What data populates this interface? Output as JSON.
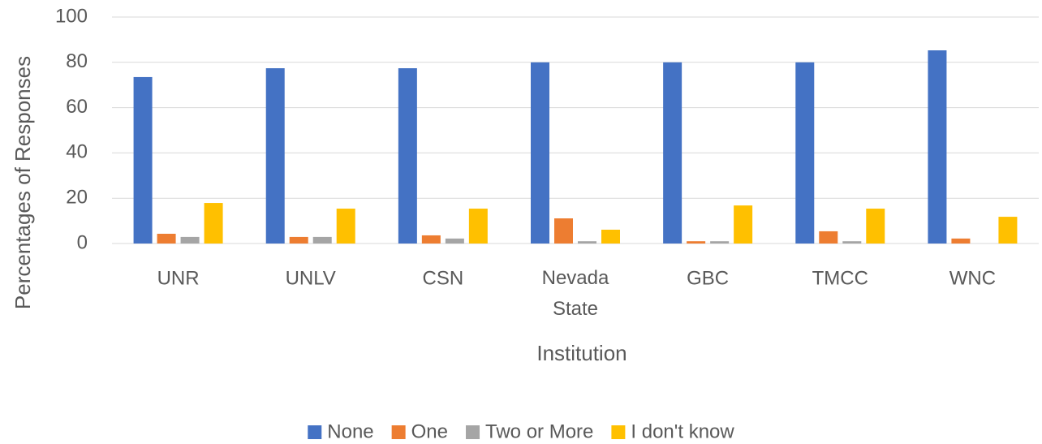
{
  "chart_data": {
    "type": "bar",
    "x_label": "Institution",
    "y_label": "Percentages of Responses",
    "categories": [
      "UNR",
      "UNLV",
      "CSN",
      "Nevada State",
      "GBC",
      "TMCC",
      "WNC"
    ],
    "series": [
      {
        "name": "None",
        "color": "#4472c4",
        "values": [
          73.5,
          77.4,
          77.4,
          80,
          80,
          80,
          85.3
        ]
      },
      {
        "name": "One",
        "color": "#ed7d31",
        "values": [
          4.3,
          2.9,
          3.6,
          11.1,
          1,
          5.4,
          2.2
        ]
      },
      {
        "name": "Two or More",
        "color": "#a5a5a5",
        "values": [
          2.9,
          2.9,
          2.2,
          1,
          1,
          1,
          0
        ]
      },
      {
        "name": "I don't know",
        "color": "#ffc000",
        "values": [
          17.9,
          15.4,
          15.4,
          6.1,
          16.8,
          15.4,
          11.8
        ]
      }
    ],
    "ylim": [
      0,
      100
    ],
    "yticks": [
      0,
      20,
      40,
      60,
      80,
      100
    ],
    "grid": true,
    "legend": "bottom"
  }
}
